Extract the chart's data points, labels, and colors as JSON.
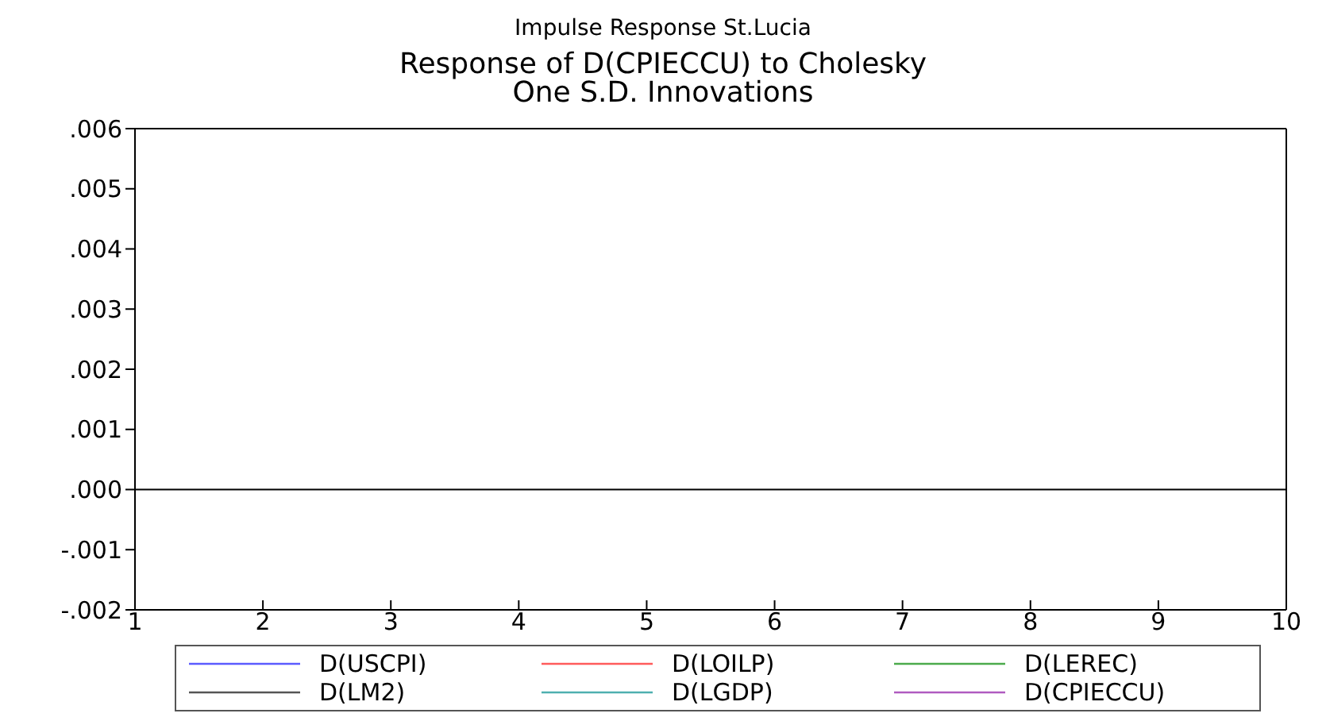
{
  "chart_data": {
    "type": "line",
    "title": "Impulse Response St.Lucia",
    "subtitle": "Response of D(CPIECCU) to Cholesky\nOne S.D. Innovations",
    "series": [
      {
        "name": "D(USCPI)",
        "color": "#5b5bff",
        "values": [
          null,
          null,
          null,
          null,
          null,
          null,
          null,
          null,
          null,
          null
        ]
      },
      {
        "name": "D(LOILP)",
        "color": "#ff5b5b",
        "values": [
          null,
          null,
          null,
          null,
          null,
          null,
          null,
          null,
          null,
          null
        ]
      },
      {
        "name": "D(LEREC)",
        "color": "#4caa4c",
        "values": [
          null,
          null,
          null,
          null,
          null,
          null,
          null,
          null,
          null,
          null
        ]
      },
      {
        "name": "D(LM2)",
        "color": "#555555",
        "values": [
          null,
          null,
          null,
          null,
          null,
          null,
          null,
          null,
          null,
          null
        ]
      },
      {
        "name": "D(LGDP)",
        "color": "#4fb0b0",
        "values": [
          null,
          null,
          null,
          null,
          null,
          null,
          null,
          null,
          null,
          null
        ]
      },
      {
        "name": "D(CPIECCU)",
        "color": "#b05bc0",
        "values": [
          null,
          null,
          null,
          null,
          null,
          null,
          null,
          null,
          null,
          null
        ]
      }
    ],
    "categories": [
      "1",
      "2",
      "3",
      "4",
      "5",
      "6",
      "7",
      "8",
      "9",
      "10"
    ],
    "ylim": [
      -0.002,
      0.006
    ],
    "yticks": [
      {
        "value": -0.002,
        "label": "-.002"
      },
      {
        "value": -0.001,
        "label": "-.001"
      },
      {
        "value": 0,
        "label": ".000"
      },
      {
        "value": 0.001,
        "label": ".001"
      },
      {
        "value": 0.002,
        "label": ".002"
      },
      {
        "value": 0.003,
        "label": ".003"
      },
      {
        "value": 0.004,
        "label": ".004"
      },
      {
        "value": 0.005,
        "label": ".005"
      },
      {
        "value": 0.006,
        "label": ".006"
      }
    ],
    "ref_lines": [
      {
        "axis": "y",
        "value": 0,
        "color": "#000000"
      }
    ],
    "legend": "bottom",
    "grid": false,
    "line_style": "solid"
  }
}
